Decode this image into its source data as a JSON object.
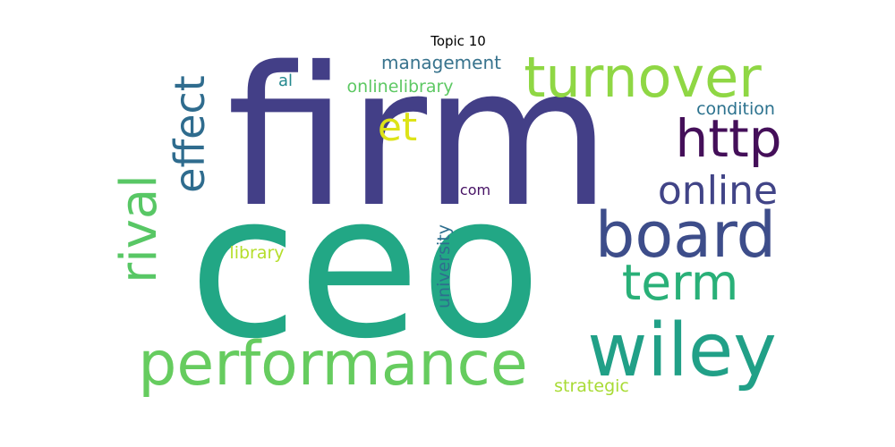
{
  "chart_data": {
    "type": "wordcloud",
    "title": "Topic 10",
    "words": [
      {
        "text": "firm",
        "color": "#433f87"
      },
      {
        "text": "ceo",
        "color": "#22a785"
      },
      {
        "text": "wiley",
        "color": "#21a087"
      },
      {
        "text": "performance",
        "color": "#66cc5f"
      },
      {
        "text": "board",
        "color": "#3d4d8a"
      },
      {
        "text": "turnover",
        "color": "#8fd744"
      },
      {
        "text": "http",
        "color": "#440f59"
      },
      {
        "text": "online",
        "color": "#414487"
      },
      {
        "text": "term",
        "color": "#29b078"
      },
      {
        "text": "effect",
        "color": "#2f6c8e"
      },
      {
        "text": "rival",
        "color": "#58c765"
      },
      {
        "text": "et",
        "color": "#dde318"
      },
      {
        "text": "management",
        "color": "#38738d"
      },
      {
        "text": "onlinelibrary",
        "color": "#5dc863"
      },
      {
        "text": "condition",
        "color": "#2c728e"
      },
      {
        "text": "al",
        "color": "#23888e"
      },
      {
        "text": "com",
        "color": "#471365"
      },
      {
        "text": "library",
        "color": "#b5de2b"
      },
      {
        "text": "university",
        "color": "#2e6e8e"
      },
      {
        "text": "strategic",
        "color": "#a8db34"
      }
    ]
  }
}
